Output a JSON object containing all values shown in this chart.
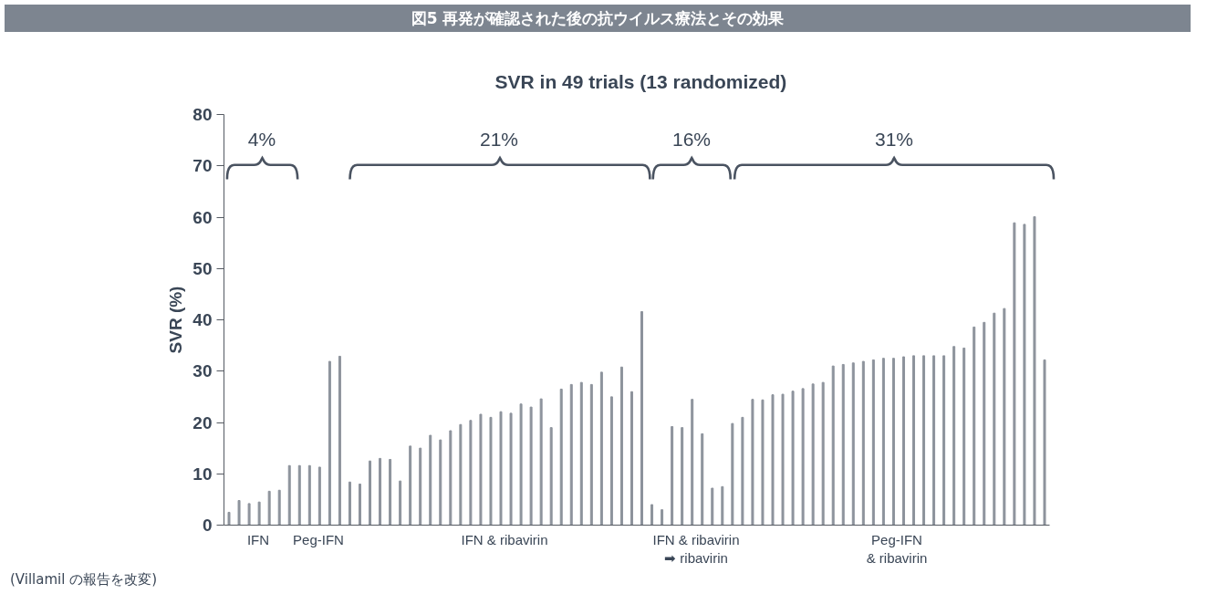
{
  "chart_data": {
    "type": "bar",
    "title": "図5 再発が確認された後の抗ウイルス療法とその効果",
    "subtitle": "SVR in 49 trials (13 randomized)",
    "ylabel": "SVR (%)",
    "categories": [
      null,
      null,
      null,
      null,
      null,
      null,
      null,
      null,
      null,
      null,
      null,
      null,
      null,
      null,
      null,
      null,
      null,
      null,
      null,
      null,
      null,
      null,
      null,
      null,
      null,
      null,
      null,
      null,
      null,
      null,
      null,
      null,
      null,
      null,
      null,
      null,
      null,
      null,
      null,
      null,
      null,
      null,
      null,
      null,
      null,
      null,
      null,
      null,
      null,
      null,
      null,
      null,
      null,
      null,
      null,
      null,
      null,
      null,
      null,
      null,
      null,
      null,
      null,
      null,
      null,
      null,
      null,
      null,
      null,
      null,
      null,
      null,
      null,
      null,
      null,
      null,
      null,
      null,
      null,
      null,
      null,
      null
    ],
    "values": [
      2.5,
      4.8,
      4.2,
      4.5,
      6.6,
      6.8,
      11.6,
      11.6,
      11.6,
      11.3,
      31.9,
      32.9,
      8.4,
      8.0,
      12.5,
      13.0,
      12.8,
      8.6,
      15.4,
      15.0,
      17.5,
      16.6,
      18.4,
      19.6,
      20.4,
      21.6,
      21.0,
      22.1,
      21.8,
      23.6,
      23.0,
      24.6,
      19.0,
      26.5,
      27.4,
      27.8,
      27.4,
      29.8,
      25.0,
      30.8,
      26.0,
      41.6,
      4.0,
      3.0,
      19.2,
      19.0,
      24.5,
      17.8,
      7.2,
      7.5,
      19.8,
      21.0,
      24.5,
      24.4,
      25.4,
      25.5,
      26.1,
      26.6,
      27.5,
      27.8,
      31.0,
      31.3,
      31.6,
      31.9,
      32.2,
      32.5,
      32.5,
      32.8,
      33.0,
      33.0,
      33.0,
      33.0,
      34.8,
      34.5,
      38.6,
      39.5,
      41.3,
      42.2,
      58.9,
      58.6,
      60.1,
      32.2
    ],
    "color": "#8d939c",
    "ylim": [
      0,
      80
    ],
    "yticks": [
      0,
      10,
      20,
      30,
      40,
      50,
      60,
      70,
      80
    ],
    "tick_labels": "y",
    "grid": false,
    "annotations": [
      "4%",
      "21%",
      "16%",
      "31%",
      "IFN",
      "Peg-IFN",
      "IFN & ribavirin",
      "IFN & ribavirin\n➡ ribavirin",
      "Peg-IFN\n& ribavirin",
      "(Villamil の報告を改変)"
    ]
  }
}
